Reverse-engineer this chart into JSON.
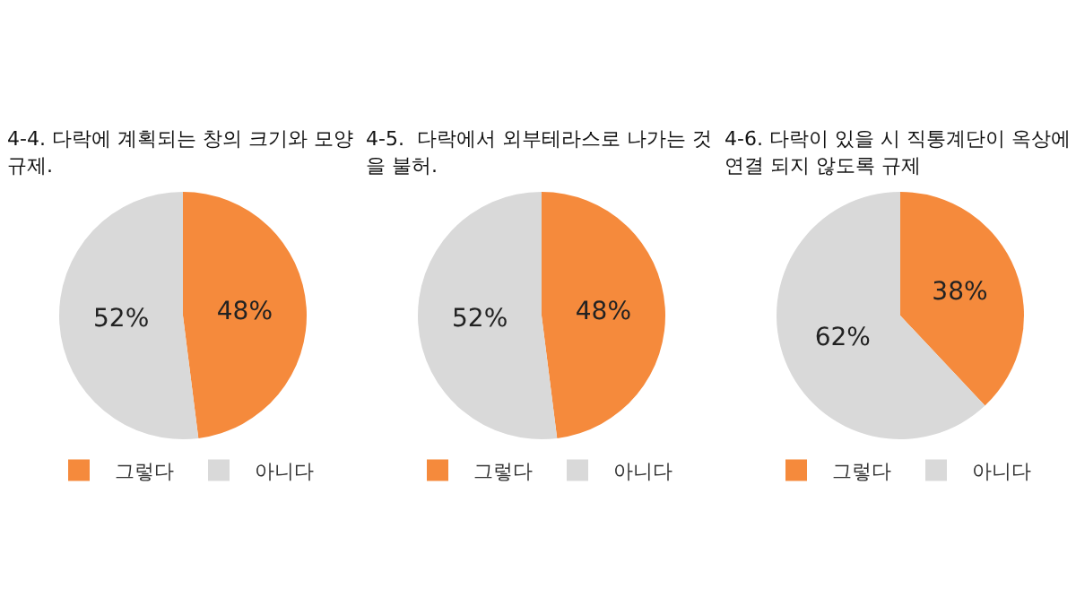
{
  "chart_data": [
    {
      "type": "pie",
      "title": "4-4. 다락에 계획되는 창의 크기와 모양 규제.",
      "categories": [
        "그렇다",
        "아니다"
      ],
      "values": [
        48,
        52
      ],
      "value_labels": [
        "48%",
        "52%"
      ],
      "colors": [
        "#f58a3c",
        "#d9d9d9"
      ],
      "legend": "bottom"
    },
    {
      "type": "pie",
      "title": "4-5.  다락에서 외부테라스로 나가는 것을 불허.",
      "categories": [
        "그렇다",
        "아니다"
      ],
      "values": [
        48,
        52
      ],
      "value_labels": [
        "48%",
        "52%"
      ],
      "colors": [
        "#f58a3c",
        "#d9d9d9"
      ],
      "legend": "bottom"
    },
    {
      "type": "pie",
      "title": "4-6. 다락이 있을 시 직통계단이 옥상에 연결 되지 않도록 규제",
      "categories": [
        "그렇다",
        "아니다"
      ],
      "values": [
        38,
        62
      ],
      "value_labels": [
        "38%",
        "62%"
      ],
      "colors": [
        "#f58a3c",
        "#d9d9d9"
      ],
      "legend": "bottom"
    }
  ]
}
